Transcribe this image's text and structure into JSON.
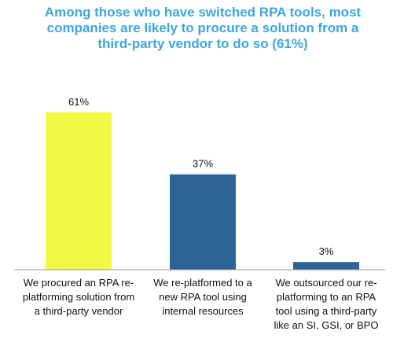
{
  "colors": {
    "title": "#3ea6dc",
    "highlight_bar": "#f0fa44",
    "bar": "#2d6497",
    "axis": "#999999",
    "text": "#111111"
  },
  "chart_data": {
    "type": "bar",
    "title_lines": [
      "Among those who have switched RPA tools, most",
      "companies are likely to procure a solution from a",
      "third-party vendor to do so (61%)"
    ],
    "categories": [
      "We procured an RPA re-platforming solution from a third-party vendor",
      "We re-platformed to a new RPA tool using internal resources",
      "We outsourced our re-platforming to an RPA tool using a third-party like an SI, GSI, or BPO"
    ],
    "category_label_lines": [
      [
        "We procured an RPA re-",
        "platforming  solution from",
        "a third-party vendor"
      ],
      [
        "We re-platformed  to a",
        "new RPA tool using",
        "internal resources"
      ],
      [
        "We outsourced our re-",
        "platforming to an RPA",
        "tool using a third-party",
        "like an SI, GSI, or BPO"
      ]
    ],
    "values": [
      61,
      37,
      3
    ],
    "data_labels": [
      "61%",
      "37%",
      "3%"
    ],
    "bar_colors": [
      "#f0fa44",
      "#2d6497",
      "#2d6497"
    ],
    "unit": "%",
    "ylim": [
      0,
      100
    ],
    "grid": false,
    "legend": "none"
  }
}
